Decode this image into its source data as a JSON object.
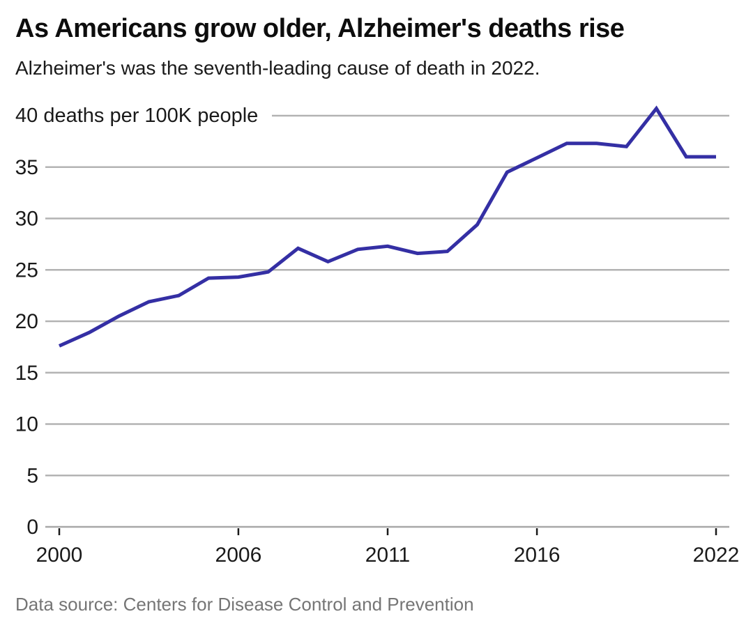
{
  "header": {
    "title": "As Americans grow older, Alzheimer's deaths rise",
    "subtitle": "Alzheimer's was the seventh-leading cause of death in 2022."
  },
  "chart_data": {
    "type": "line",
    "title": "As Americans grow older, Alzheimer's deaths rise",
    "subtitle": "Alzheimer's was the seventh-leading cause of death in 2022.",
    "unit_label": "40 deaths per 100K people",
    "xlabel": "",
    "ylabel": "deaths per 100K people",
    "x": [
      2000,
      2001,
      2002,
      2003,
      2004,
      2005,
      2006,
      2007,
      2008,
      2009,
      2010,
      2011,
      2012,
      2013,
      2014,
      2015,
      2016,
      2017,
      2018,
      2019,
      2020,
      2021,
      2022
    ],
    "values": [
      17.6,
      18.9,
      20.5,
      21.9,
      22.5,
      24.2,
      24.3,
      24.8,
      27.1,
      25.8,
      27.0,
      27.3,
      26.6,
      26.8,
      29.4,
      34.5,
      35.9,
      37.3,
      37.3,
      37.0,
      40.7,
      36.0,
      36.0
    ],
    "xlim": [
      2000,
      2022
    ],
    "ylim": [
      0,
      40
    ],
    "y_gridlines": [
      0,
      5,
      10,
      15,
      20,
      25,
      30,
      35,
      40
    ],
    "y_tick_labels": [
      35,
      30,
      25,
      20,
      15,
      10,
      5,
      0
    ],
    "x_ticks": [
      2000,
      2006,
      2011,
      2016,
      2022
    ],
    "grid": true,
    "legend_position": "none",
    "line_color": "#342fa4",
    "grid_color": "#b3b3b3",
    "axis_color": "#a8a8a8",
    "tick_color": "#1a1a1a",
    "text_color": "#1a1a1a"
  },
  "footer": {
    "source": "Data source: Centers for Disease Control and Prevention"
  }
}
